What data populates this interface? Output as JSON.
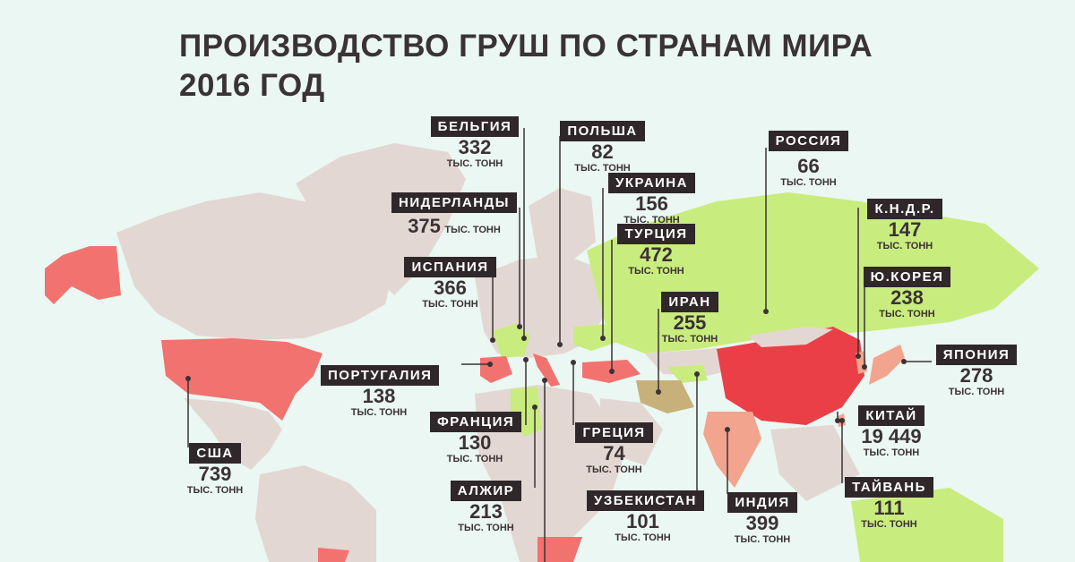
{
  "title": {
    "line1": "ПРОИЗВОДСТВО ГРУШ ПО СТРАНАМ МИРА",
    "line2": "2016 ГОД"
  },
  "unit": "ТЫС. ТОНН",
  "colors": {
    "ocean": "#eaf7f2",
    "land_default": "#e3d7d3",
    "low": "#c9ec7e",
    "mid": "#f3a48e",
    "high": "#f27270",
    "highest": "#ea3f46",
    "label_bg": "#2f2729"
  },
  "countries": [
    {
      "key": "belgium",
      "name": "БЕЛЬГИЯ",
      "value": "332"
    },
    {
      "key": "poland",
      "name": "ПОЛЬША",
      "value": "82"
    },
    {
      "key": "russia",
      "name": "РОССИЯ",
      "value": "66"
    },
    {
      "key": "ukraine",
      "name": "УКРАИНА",
      "value": "156"
    },
    {
      "key": "netherlands",
      "name": "НИДЕРЛАНДЫ",
      "value": "375"
    },
    {
      "key": "turkey",
      "name": "ТУРЦИЯ",
      "value": "472"
    },
    {
      "key": "north_korea",
      "name": "К.Н.Д.Р.",
      "value": "147"
    },
    {
      "key": "spain",
      "name": "ИСПАНИЯ",
      "value": "366"
    },
    {
      "key": "south_korea",
      "name": "Ю.КОРЕЯ",
      "value": "238"
    },
    {
      "key": "iran",
      "name": "ИРАН",
      "value": "255"
    },
    {
      "key": "japan",
      "name": "ЯПОНИЯ",
      "value": "278"
    },
    {
      "key": "portugal",
      "name": "ПОРТУГАЛИЯ",
      "value": "138"
    },
    {
      "key": "china",
      "name": "КИТАЙ",
      "value": "19 449"
    },
    {
      "key": "france",
      "name": "ФРАНЦИЯ",
      "value": "130"
    },
    {
      "key": "greece",
      "name": "ГРЕЦИЯ",
      "value": "74"
    },
    {
      "key": "usa",
      "name": "США",
      "value": "739"
    },
    {
      "key": "algeria",
      "name": "АЛЖИР",
      "value": "213"
    },
    {
      "key": "uzbekistan",
      "name": "УЗБЕКИСТАН",
      "value": "101"
    },
    {
      "key": "india",
      "name": "ИНДИЯ",
      "value": "399"
    },
    {
      "key": "taiwan",
      "name": "ТАЙВАНЬ",
      "value": "111"
    }
  ]
}
